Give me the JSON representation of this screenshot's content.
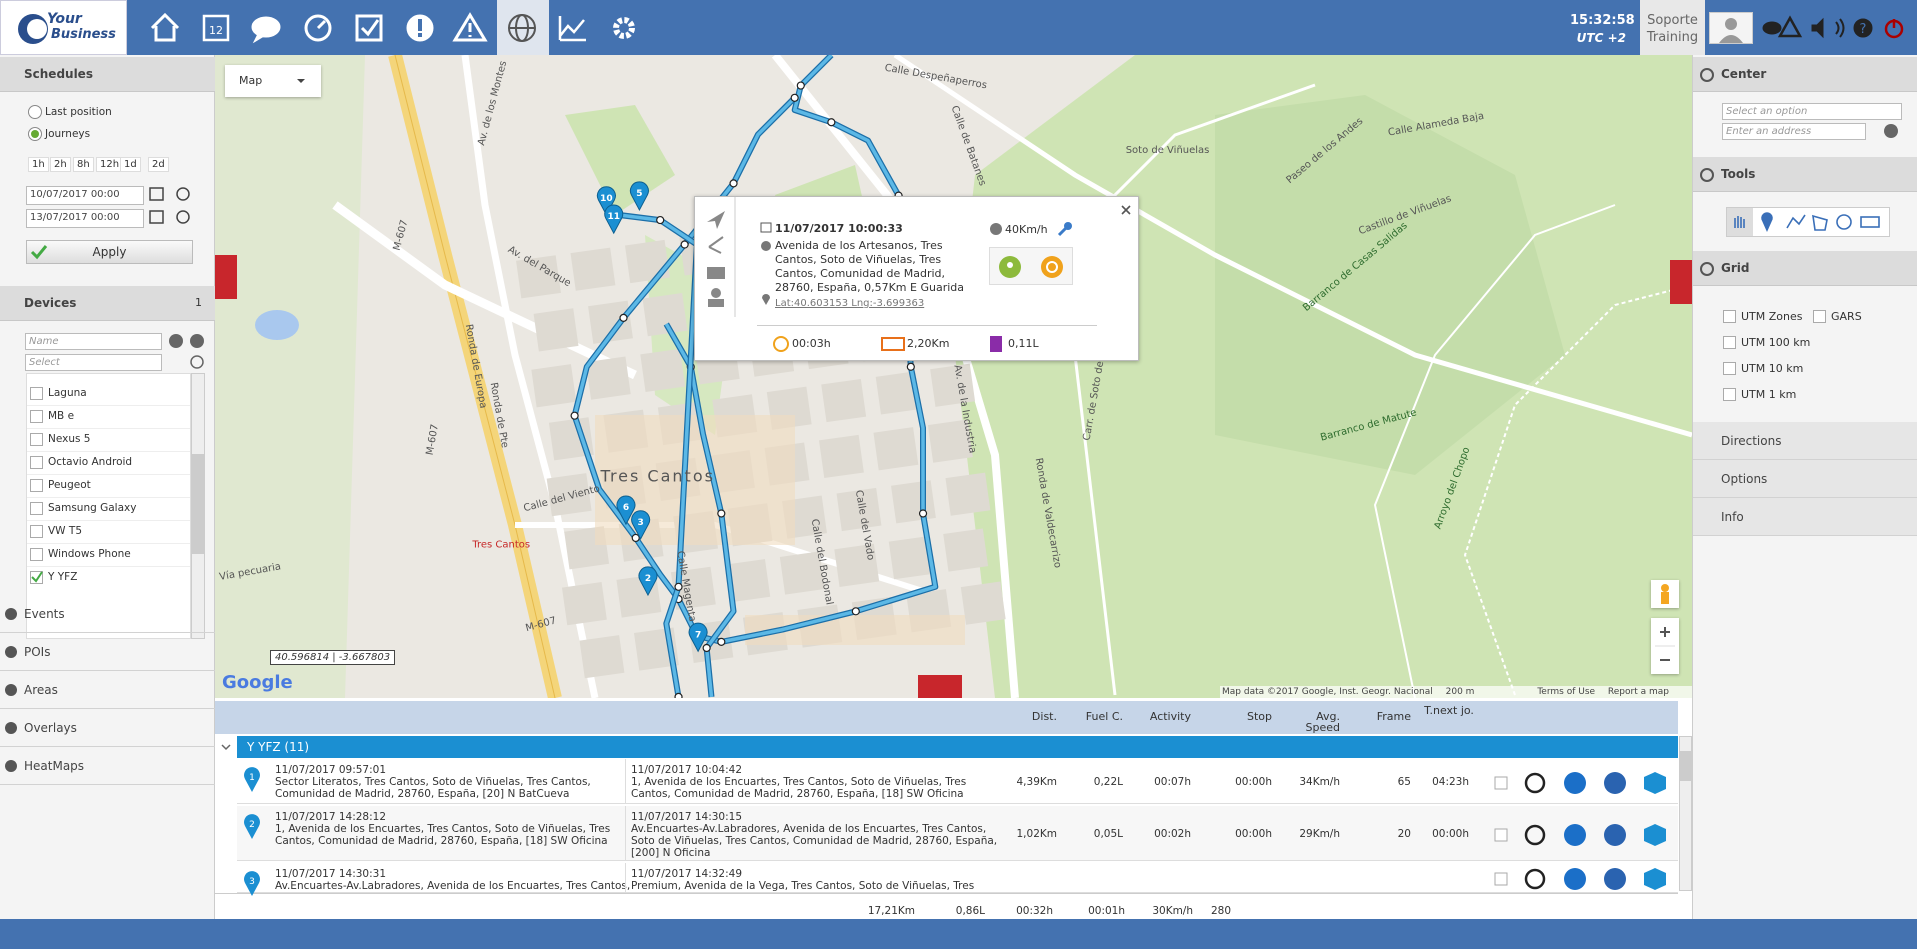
{
  "header": {
    "logo": [
      "Your",
      "Business"
    ],
    "time": "15:32:58",
    "timezone": "UTC +2",
    "user": [
      "Soporte",
      "Training"
    ]
  },
  "left": {
    "schedules": "Schedules",
    "modes": [
      "Last position",
      "Journeys"
    ],
    "ranges": [
      "1h",
      "2h",
      "8h",
      "12h",
      "1d",
      "2d"
    ],
    "date_from": "10/07/2017 00:00",
    "date_to": "13/07/2017 00:00",
    "apply": "Apply",
    "devices": "Devices",
    "device_count": "1",
    "name_placeholder": "Name",
    "select_placeholder": "Select",
    "device_list": [
      "Laguna",
      "MB e",
      "Nexus 5",
      "Octavio Android",
      "Peugeot",
      "Samsung Galaxy",
      "VW T5",
      "Windows Phone",
      "Y YFZ"
    ],
    "sections": [
      "Events",
      "POIs",
      "Areas",
      "Overlays",
      "HeatMaps"
    ]
  },
  "map": {
    "type": "Map",
    "labels": [
      "Calle Despeñaperros",
      "Calle de Batanes",
      "Calle Alameda Baja",
      "Soto de Viñuelas",
      "Paseo de los Andes",
      "Barranco de Casas Salidas",
      "Castillo de Viñuelas",
      "Av. de los Montes",
      "Av. del Parque",
      "Ronda de Europa",
      "Tres Cantos",
      "Calle del Viento",
      "Calle Magenta",
      "Calle del Bodonal",
      "Calle del Vado",
      "Av. de la Industria",
      "Barranco de Matute",
      "Arroyo del Chopo",
      "Carr. de Soto de Viñuelas",
      "Ronda de Valdecarrizo",
      "M-607",
      "M-607",
      "M-607",
      "Tres Cantos",
      "Vía pecuaria",
      "Ronda de Pte"
    ],
    "markers": [
      "10",
      "11",
      "5",
      "6",
      "3",
      "2",
      "7"
    ],
    "coords": "40.596814 | -3.667803",
    "google": "Google",
    "attribution": "Map data ©2017 Google, Inst. Geogr. Nacional",
    "scale": "200 m",
    "terms": "Terms of Use",
    "report": "Report a map error",
    "popup": {
      "datetime": "11/07/2017 10:00:33",
      "address": [
        "Avenida de los Artesanos, Tres",
        "Cantos, Soto de Viñuelas, Tres",
        "Cantos, Comunidad de Madrid,",
        "28760, España, 0,57Km E Guarida"
      ],
      "speed": "40Km/h",
      "position": "Lat:40.603153 Lng:-3.699363",
      "duration": "00:03h",
      "distance": "2,20Km",
      "fuel": "0,11L"
    }
  },
  "right": {
    "center": "Center",
    "select_option": "Select an option",
    "address_placeholder": "Enter an address",
    "tools": "Tools",
    "grid": "Grid",
    "grid_options": [
      "UTM Zones",
      "GARS",
      "UTM 100 km",
      "UTM 10 km",
      "UTM 1 km"
    ],
    "sections": [
      "Directions",
      "Options",
      "Info"
    ]
  },
  "table": {
    "columns": [
      "Dist.",
      "Fuel C.",
      "Activity",
      "Stop",
      "Avg. Speed",
      "Frame",
      "T.next jo."
    ],
    "group": "Y YFZ (11)",
    "rows": [
      {
        "marker": "1",
        "start": [
          "11/07/2017 09:57:01",
          "Sector Literatos, Tres Cantos, Soto de Viñuelas, Tres Cantos,",
          "Comunidad de Madrid, 28760, España, [20] N BatCueva"
        ],
        "end": [
          "11/07/2017 10:04:42",
          "1, Avenida de los Encuartes, Tres Cantos, Soto de Viñuelas, Tres",
          "Cantos, Comunidad de Madrid, 28760, España, [18] SW Oficina"
        ],
        "cells": [
          "4,39Km",
          "0,22L",
          "00:07h",
          "00:00h",
          "34Km/h",
          "65",
          "04:23h"
        ]
      },
      {
        "marker": "2",
        "start": [
          "11/07/2017 14:28:12",
          "1, Avenida de los Encuartes, Tres Cantos, Soto de Viñuelas, Tres",
          "Cantos, Comunidad de Madrid, 28760, España, [18] SW Oficina"
        ],
        "end": [
          "11/07/2017 14:30:15",
          "Av.Encuartes-Av.Labradores, Avenida de los Encuartes, Tres Cantos,",
          "Soto de Viñuelas, Tres Cantos, Comunidad de Madrid, 28760, España,",
          "[200] N Oficina"
        ],
        "cells": [
          "1,02Km",
          "0,05L",
          "00:02h",
          "00:00h",
          "29Km/h",
          "20",
          "00:00h"
        ]
      },
      {
        "marker": "3",
        "start": [
          "11/07/2017 14:30:31",
          "Av.Encuartes-Av.Labradores, Avenida de los Encuartes, Tres Cantos,"
        ],
        "end": [
          "11/07/2017 14:32:49",
          "Premium, Avenida de la Vega, Tres Cantos, Soto de Viñuelas, Tres"
        ],
        "cells": []
      }
    ],
    "totals": [
      "17,21Km",
      "0,86L",
      "00:32h",
      "00:01h",
      "30Km/h",
      "280"
    ]
  }
}
